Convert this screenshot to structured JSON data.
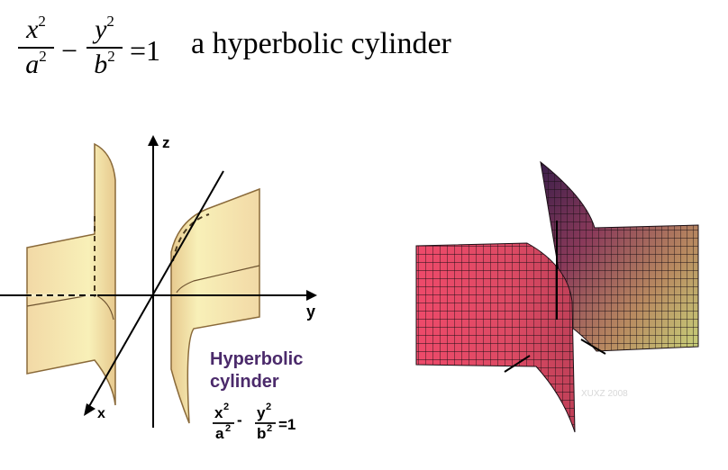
{
  "equation": {
    "term1": {
      "numerator": "x",
      "denominator": "a",
      "exponent": "2"
    },
    "minus": "−",
    "term2": {
      "numerator": "y",
      "denominator": "b",
      "exponent": "2"
    },
    "equals": "=1"
  },
  "title": "a hyperbolic cylinder",
  "left_diagram": {
    "axis_z": "z",
    "axis_y": "y",
    "axis_x": "x",
    "caption_line1": "Hyperbolic",
    "caption_line2": "cylinder",
    "caption_eq": {
      "x_num": "x",
      "a_den": "a",
      "y_num": "y",
      "b_den": "b",
      "exp": "2",
      "minus": "-",
      "equals": "=1"
    },
    "surface_fill": "#f2d9a6",
    "surface_fill_light": "#f8f0b8",
    "surface_stroke": "#8a6a3a",
    "caption_color": "#4b2a6b"
  },
  "right_diagram": {
    "watermark": "XUXZ 2008",
    "left_sheet_color": "#e84a68",
    "right_sheet_color_top": "#5a2a5a",
    "right_sheet_color_bottom": "#c8d27a"
  }
}
